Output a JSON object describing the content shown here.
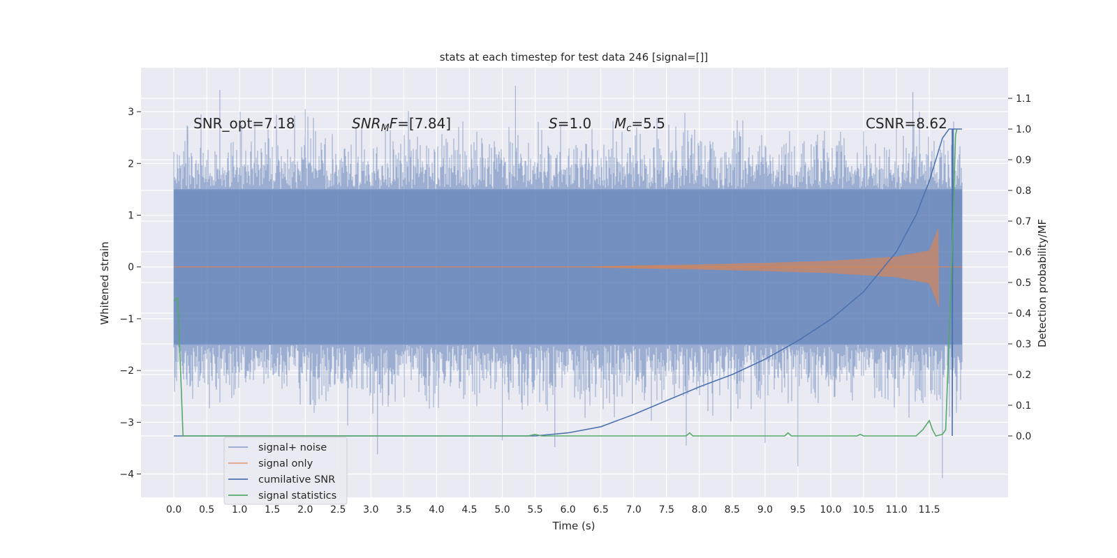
{
  "chart_data": {
    "type": "line",
    "title": "stats at each timestep for test data 246 [signal=[]]",
    "xlabel": "Time (s)",
    "ylabel": "Whitened strain",
    "y2label": "Detection probability/MF",
    "xlim": [
      -0.5,
      12.7
    ],
    "ylim": [
      -4.45,
      3.85
    ],
    "y2lim": [
      -0.2,
      1.2
    ],
    "grid": true,
    "x_ticks": [
      0.0,
      0.5,
      1.0,
      1.5,
      2.0,
      2.5,
      3.0,
      3.5,
      4.0,
      4.5,
      5.0,
      5.5,
      6.0,
      6.5,
      7.0,
      7.5,
      8.0,
      8.5,
      9.0,
      9.5,
      10.0,
      10.5,
      11.0,
      11.5
    ],
    "x_tick_labels": [
      "0.0",
      "0.5",
      "1.0",
      "1.5",
      "2.0",
      "2.5",
      "3.0",
      "3.5",
      "4.0",
      "4.5",
      "5.0",
      "5.5",
      "6.0",
      "6.5",
      "7.0",
      "7.5",
      "8.0",
      "8.5",
      "9.0",
      "9.5",
      "10.0",
      "10.5",
      "11.0",
      "11.5"
    ],
    "y_ticks": [
      3,
      2,
      1,
      0,
      -1,
      -2,
      -3,
      -4
    ],
    "y_tick_labels": [
      "3",
      "2",
      "1",
      "0",
      "−1",
      "−2",
      "−3",
      "−4"
    ],
    "y2_ticks": [
      1.1,
      1.0,
      0.9,
      0.8,
      0.7,
      0.6,
      0.5,
      0.4,
      0.3,
      0.2,
      0.1,
      0.0
    ],
    "y2_tick_labels": [
      "1.1",
      "1.0",
      "0.9",
      "0.8",
      "0.7",
      "0.6",
      "0.5",
      "0.4",
      "0.3",
      "0.2",
      "0.1",
      "0.0"
    ],
    "annotations": [
      "SNR_opt=7.18",
      "SNR_MF=[7.84]",
      "S=1.0",
      "M_c=5.5",
      "CSNR=8.62"
    ],
    "legend_placement": "lower-left",
    "series": [
      {
        "name": "signal+ noise",
        "color": "#4c72b0",
        "style": "noise band",
        "x_range": [
          0.0,
          12.0
        ],
        "typical_range": [
          -1.5,
          1.5
        ],
        "outliers": [
          {
            "x": 0.7,
            "y": 3.42
          },
          {
            "x": 2.0,
            "y": 3.05
          },
          {
            "x": 3.1,
            "y": -3.62
          },
          {
            "x": 5.2,
            "y": 3.5
          },
          {
            "x": 5.0,
            "y": -3.35
          },
          {
            "x": 5.8,
            "y": -3.48
          },
          {
            "x": 7.8,
            "y": -3.45
          },
          {
            "x": 9.0,
            "y": -3.4
          },
          {
            "x": 9.5,
            "y": -3.85
          },
          {
            "x": 11.25,
            "y": 3.38
          },
          {
            "x": 11.7,
            "y": -4.08
          }
        ]
      },
      {
        "name": "signal only",
        "color": "#dd8452",
        "style": "chirp",
        "amplitude": [
          {
            "x": 0.0,
            "y": 0.0
          },
          {
            "x": 6.0,
            "y": 0.0
          },
          {
            "x": 7.0,
            "y": 0.03
          },
          {
            "x": 8.0,
            "y": 0.05
          },
          {
            "x": 9.0,
            "y": 0.08
          },
          {
            "x": 10.0,
            "y": 0.12
          },
          {
            "x": 11.0,
            "y": 0.2
          },
          {
            "x": 11.5,
            "y": 0.32
          },
          {
            "x": 11.65,
            "y": 0.8
          }
        ]
      },
      {
        "name": "cumilative SNR",
        "color": "#4c72b0",
        "axis": "right",
        "points": [
          {
            "x": 0.0,
            "y": 0.0
          },
          {
            "x": 5.5,
            "y": 0.0
          },
          {
            "x": 6.0,
            "y": 0.01
          },
          {
            "x": 6.5,
            "y": 0.03
          },
          {
            "x": 7.0,
            "y": 0.07
          },
          {
            "x": 7.5,
            "y": 0.115
          },
          {
            "x": 8.0,
            "y": 0.16
          },
          {
            "x": 8.5,
            "y": 0.2
          },
          {
            "x": 9.0,
            "y": 0.25
          },
          {
            "x": 9.5,
            "y": 0.31
          },
          {
            "x": 10.0,
            "y": 0.38
          },
          {
            "x": 10.5,
            "y": 0.47
          },
          {
            "x": 11.0,
            "y": 0.6
          },
          {
            "x": 11.3,
            "y": 0.72
          },
          {
            "x": 11.5,
            "y": 0.83
          },
          {
            "x": 11.7,
            "y": 0.97
          },
          {
            "x": 11.8,
            "y": 1.0
          },
          {
            "x": 11.85,
            "y": 1.0
          },
          {
            "x": 11.85,
            "y": 0.0
          },
          {
            "x": 11.86,
            "y": 1.0
          },
          {
            "x": 12.0,
            "y": 1.0
          }
        ]
      },
      {
        "name": "signal statistics",
        "color": "#55a868",
        "axis": "right",
        "points": [
          {
            "x": 0.0,
            "y": 0.44
          },
          {
            "x": 0.06,
            "y": 0.45
          },
          {
            "x": 0.14,
            "y": 0.0
          },
          {
            "x": 5.4,
            "y": 0.0
          },
          {
            "x": 5.5,
            "y": 0.005
          },
          {
            "x": 5.6,
            "y": 0.0
          },
          {
            "x": 7.8,
            "y": 0.0
          },
          {
            "x": 7.85,
            "y": 0.01
          },
          {
            "x": 7.9,
            "y": 0.0
          },
          {
            "x": 9.3,
            "y": 0.0
          },
          {
            "x": 9.35,
            "y": 0.01
          },
          {
            "x": 9.4,
            "y": 0.0
          },
          {
            "x": 10.4,
            "y": 0.0
          },
          {
            "x": 10.45,
            "y": 0.005
          },
          {
            "x": 10.5,
            "y": 0.0
          },
          {
            "x": 11.3,
            "y": 0.0
          },
          {
            "x": 11.4,
            "y": 0.02
          },
          {
            "x": 11.5,
            "y": 0.05
          },
          {
            "x": 11.55,
            "y": 0.02
          },
          {
            "x": 11.6,
            "y": 0.0
          },
          {
            "x": 11.7,
            "y": 0.005
          },
          {
            "x": 11.75,
            "y": 0.02
          },
          {
            "x": 11.85,
            "y": 0.6
          },
          {
            "x": 11.9,
            "y": 0.98
          },
          {
            "x": 11.92,
            "y": 1.0
          }
        ]
      }
    ]
  }
}
